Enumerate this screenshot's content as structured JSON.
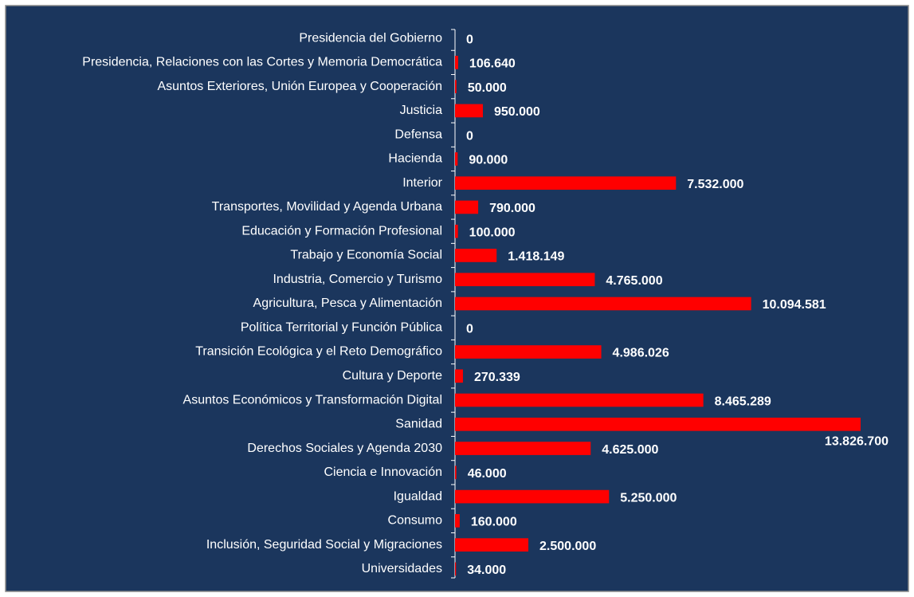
{
  "chart_data": {
    "type": "barh",
    "color": "#ff0000",
    "categories": [
      "Presidencia del Gobierno",
      "Presidencia, Relaciones con las Cortes y Memoria Democrática",
      "Asuntos Exteriores, Unión Europea y Cooperación",
      "Justicia",
      "Defensa",
      "Hacienda",
      "Interior",
      "Transportes, Movilidad y Agenda Urbana",
      "Educación y Formación Profesional",
      "Trabajo y Economía Social",
      "Industria, Comercio y Turismo",
      "Agricultura, Pesca y Alimentación",
      "Política Territorial y Función Pública",
      "Transición Ecológica y el Reto Demográfico",
      "Cultura y Deporte",
      "Asuntos Económicos y Transformación Digital",
      "Sanidad",
      "Derechos Sociales y Agenda 2030",
      "Ciencia e Innovación",
      "Igualdad",
      "Consumo",
      "Inclusión, Seguridad Social y Migraciones",
      "Universidades"
    ],
    "values": [
      0,
      106640,
      50000,
      950000,
      0,
      90000,
      7532000,
      790000,
      100000,
      1418149,
      4765000,
      10094581,
      0,
      4986026,
      270339,
      8465289,
      13826700,
      4625000,
      46000,
      5250000,
      160000,
      2500000,
      34000
    ],
    "value_labels": [
      "0",
      "106.640",
      "50.000",
      "950.000",
      "0",
      "90.000",
      "7.532.000",
      "790.000",
      "100.000",
      "1.418.149",
      "4.765.000",
      "10.094.581",
      "0",
      "4.986.026",
      "270.339",
      "8.465.289",
      "13.826.700",
      "4.625.000",
      "46.000",
      "5.250.000",
      "160.000",
      "2.500.000",
      "34.000"
    ]
  }
}
